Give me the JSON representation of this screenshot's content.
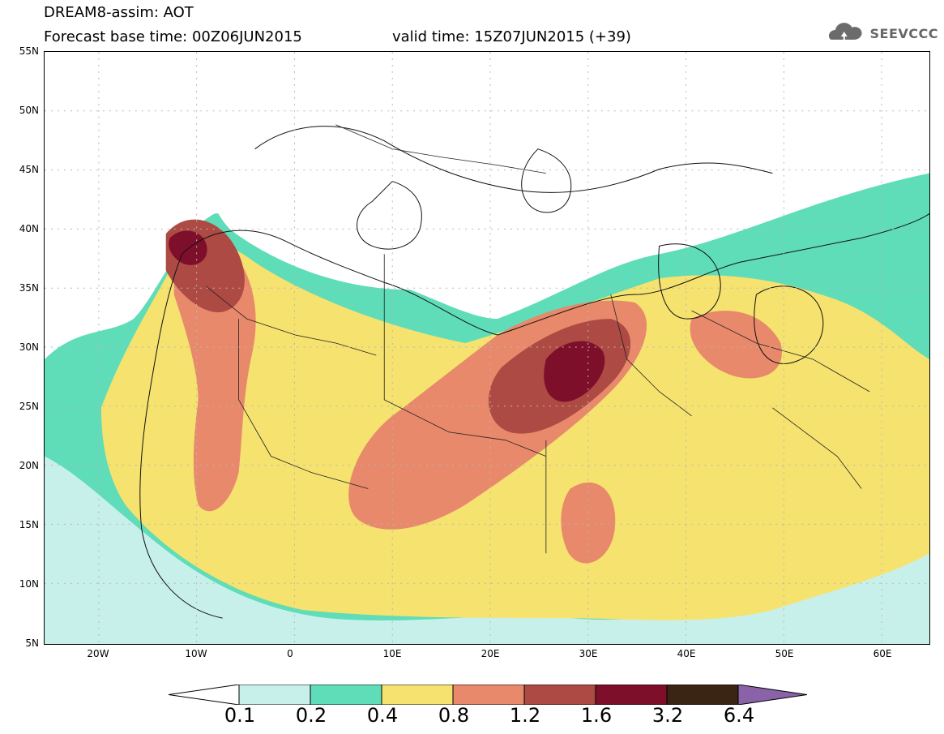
{
  "header": {
    "title": "DREAM8-assim: AOT",
    "base": "Forecast base time: 00Z06JUN2015",
    "valid": "valid time: 15Z07JUN2015 (+39)",
    "logo_text": "SEEVCCC"
  },
  "axes": {
    "lat_labels": [
      "55N",
      "50N",
      "45N",
      "40N",
      "35N",
      "30N",
      "25N",
      "20N",
      "15N",
      "10N",
      "5N"
    ],
    "lon_labels": [
      "20W",
      "10W",
      "0",
      "10E",
      "20E",
      "30E",
      "40E",
      "50E",
      "60E"
    ]
  },
  "legend": {
    "colors": [
      "#c8f0ea",
      "#5fdcb8",
      "#f5e26f",
      "#e8896b",
      "#ad4a43",
      "#7d0f2b",
      "#3a2414",
      "#8a62a7"
    ],
    "labels": [
      "0.1",
      "0.2",
      "0.4",
      "0.8",
      "1.2",
      "1.6",
      "3.2",
      "6.4"
    ]
  }
}
